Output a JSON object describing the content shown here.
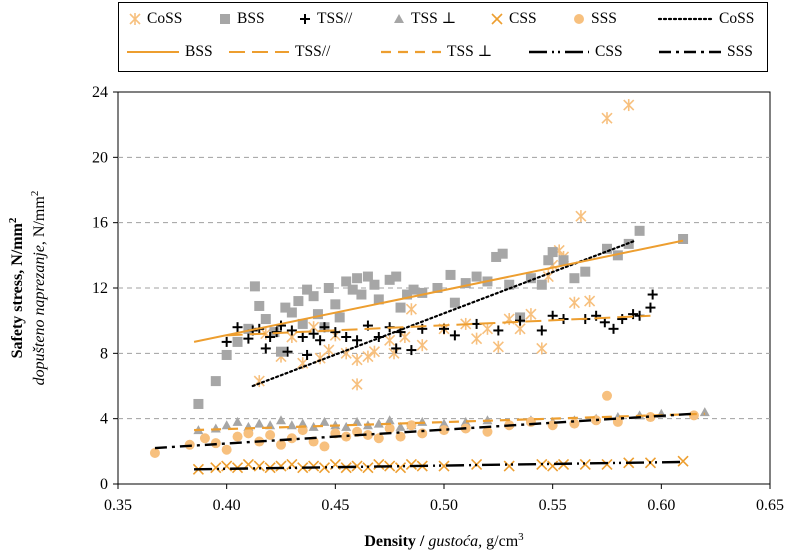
{
  "chart_data": {
    "type": "scatter",
    "xlabel": {
      "bold": "Density",
      "sep": " / ",
      "italic": "gustoća,",
      "unit": " g/cm",
      "sup": "3"
    },
    "ylabel": {
      "line1": "Safety stress, N/mm",
      "line1_sup": "2",
      "line2_italic": "dopušteno naprezanje",
      "line2_unit": ", N/mm",
      "line2_sup": "2"
    },
    "xlim": [
      0.35,
      0.65
    ],
    "ylim": [
      0,
      24
    ],
    "xticks": [
      "0.35",
      "0.40",
      "0.45",
      "0.50",
      "0.55",
      "0.60",
      "0.65"
    ],
    "yticks": [
      "0",
      "4",
      "8",
      "12",
      "16",
      "20",
      "24"
    ],
    "grid": "horizontal dashed",
    "legend_position": "top",
    "colors": {
      "orange": "#ED9E2F",
      "gray": "#A6A6A6",
      "light_orange": "#F7C07E",
      "black": "#000000"
    },
    "legend": [
      "CoSS",
      "BSS",
      "TSS//",
      "TSS ⊥",
      "CSS",
      "SSS",
      "CoSS",
      "BSS",
      "TSS//",
      "TSS ⊥",
      "CSS",
      "SSS"
    ],
    "series": [
      {
        "name": "CoSS",
        "marker": "asterisk",
        "color": "#F7C07E",
        "points": [
          [
            0.415,
            6.3
          ],
          [
            0.418,
            9.2
          ],
          [
            0.425,
            7.8
          ],
          [
            0.43,
            9.0
          ],
          [
            0.435,
            7.4
          ],
          [
            0.44,
            9.6
          ],
          [
            0.443,
            7.7
          ],
          [
            0.447,
            8.2
          ],
          [
            0.45,
            9.1
          ],
          [
            0.455,
            8.0
          ],
          [
            0.46,
            7.6
          ],
          [
            0.46,
            6.1
          ],
          [
            0.465,
            7.8
          ],
          [
            0.468,
            8.1
          ],
          [
            0.475,
            8.8
          ],
          [
            0.477,
            8.0
          ],
          [
            0.482,
            9.0
          ],
          [
            0.485,
            10.7
          ],
          [
            0.49,
            8.5
          ],
          [
            0.5,
            9.5
          ],
          [
            0.51,
            9.8
          ],
          [
            0.515,
            8.9
          ],
          [
            0.52,
            9.5
          ],
          [
            0.525,
            8.4
          ],
          [
            0.53,
            10.1
          ],
          [
            0.535,
            9.5
          ],
          [
            0.54,
            10.4
          ],
          [
            0.545,
            8.3
          ],
          [
            0.548,
            12.7
          ],
          [
            0.55,
            13.4
          ],
          [
            0.553,
            14.3
          ],
          [
            0.555,
            13.9
          ],
          [
            0.56,
            11.1
          ],
          [
            0.563,
            16.4
          ],
          [
            0.567,
            11.2
          ],
          [
            0.575,
            22.4
          ],
          [
            0.585,
            23.2
          ]
        ]
      },
      {
        "name": "BSS",
        "marker": "square",
        "color": "#A6A6A6",
        "points": [
          [
            0.387,
            4.9
          ],
          [
            0.395,
            6.3
          ],
          [
            0.4,
            7.9
          ],
          [
            0.405,
            8.7
          ],
          [
            0.41,
            9.5
          ],
          [
            0.413,
            12.1
          ],
          [
            0.415,
            10.9
          ],
          [
            0.418,
            10.1
          ],
          [
            0.422,
            9.3
          ],
          [
            0.425,
            8.1
          ],
          [
            0.427,
            10.8
          ],
          [
            0.43,
            10.5
          ],
          [
            0.433,
            11.2
          ],
          [
            0.435,
            9.8
          ],
          [
            0.437,
            11.9
          ],
          [
            0.44,
            11.5
          ],
          [
            0.442,
            10.4
          ],
          [
            0.445,
            9.6
          ],
          [
            0.447,
            12.0
          ],
          [
            0.45,
            11.0
          ],
          [
            0.452,
            10.2
          ],
          [
            0.455,
            12.4
          ],
          [
            0.458,
            11.9
          ],
          [
            0.46,
            12.6
          ],
          [
            0.462,
            11.6
          ],
          [
            0.465,
            12.7
          ],
          [
            0.468,
            12.2
          ],
          [
            0.47,
            11.3
          ],
          [
            0.475,
            12.5
          ],
          [
            0.478,
            12.7
          ],
          [
            0.48,
            10.8
          ],
          [
            0.483,
            11.6
          ],
          [
            0.486,
            11.9
          ],
          [
            0.49,
            11.7
          ],
          [
            0.497,
            12.0
          ],
          [
            0.503,
            12.8
          ],
          [
            0.505,
            11.1
          ],
          [
            0.51,
            12.3
          ],
          [
            0.515,
            12.7
          ],
          [
            0.52,
            12.4
          ],
          [
            0.524,
            13.9
          ],
          [
            0.527,
            14.1
          ],
          [
            0.53,
            12.2
          ],
          [
            0.535,
            10.2
          ],
          [
            0.54,
            12.6
          ],
          [
            0.545,
            12.2
          ],
          [
            0.548,
            13.7
          ],
          [
            0.55,
            14.2
          ],
          [
            0.555,
            13.7
          ],
          [
            0.56,
            12.6
          ],
          [
            0.565,
            13.0
          ],
          [
            0.575,
            14.4
          ],
          [
            0.58,
            14.0
          ],
          [
            0.585,
            14.7
          ],
          [
            0.59,
            15.5
          ],
          [
            0.61,
            15.0
          ]
        ]
      },
      {
        "name": "TSS//",
        "marker": "plus",
        "color": "#000000",
        "points": [
          [
            0.4,
            8.7
          ],
          [
            0.405,
            9.6
          ],
          [
            0.41,
            8.9
          ],
          [
            0.412,
            9.4
          ],
          [
            0.415,
            9.5
          ],
          [
            0.418,
            8.3
          ],
          [
            0.42,
            9.0
          ],
          [
            0.423,
            9.3
          ],
          [
            0.425,
            9.7
          ],
          [
            0.428,
            8.1
          ],
          [
            0.43,
            9.4
          ],
          [
            0.435,
            9.0
          ],
          [
            0.437,
            7.9
          ],
          [
            0.44,
            9.2
          ],
          [
            0.443,
            8.8
          ],
          [
            0.445,
            9.6
          ],
          [
            0.45,
            9.3
          ],
          [
            0.455,
            9.0
          ],
          [
            0.46,
            8.8
          ],
          [
            0.465,
            9.7
          ],
          [
            0.47,
            9.0
          ],
          [
            0.475,
            9.6
          ],
          [
            0.478,
            8.3
          ],
          [
            0.48,
            9.3
          ],
          [
            0.485,
            8.2
          ],
          [
            0.49,
            9.5
          ],
          [
            0.5,
            9.5
          ],
          [
            0.505,
            9.1
          ],
          [
            0.515,
            9.8
          ],
          [
            0.525,
            9.4
          ],
          [
            0.535,
            10.0
          ],
          [
            0.545,
            9.4
          ],
          [
            0.55,
            10.3
          ],
          [
            0.555,
            10.1
          ],
          [
            0.565,
            10.1
          ],
          [
            0.57,
            10.3
          ],
          [
            0.574,
            9.9
          ],
          [
            0.578,
            9.5
          ],
          [
            0.582,
            10.1
          ],
          [
            0.587,
            10.4
          ],
          [
            0.59,
            10.3
          ],
          [
            0.595,
            10.8
          ],
          [
            0.596,
            11.6
          ]
        ]
      },
      {
        "name": "TSS ⊥",
        "marker": "triangle",
        "color": "#A6A6A6",
        "points": [
          [
            0.387,
            3.3
          ],
          [
            0.395,
            3.4
          ],
          [
            0.4,
            3.6
          ],
          [
            0.405,
            3.8
          ],
          [
            0.41,
            3.5
          ],
          [
            0.415,
            3.7
          ],
          [
            0.42,
            3.6
          ],
          [
            0.425,
            3.9
          ],
          [
            0.43,
            3.6
          ],
          [
            0.435,
            3.7
          ],
          [
            0.44,
            3.5
          ],
          [
            0.445,
            3.8
          ],
          [
            0.45,
            3.6
          ],
          [
            0.455,
            3.5
          ],
          [
            0.46,
            3.8
          ],
          [
            0.465,
            3.6
          ],
          [
            0.47,
            3.7
          ],
          [
            0.475,
            3.9
          ],
          [
            0.48,
            3.5
          ],
          [
            0.485,
            3.6
          ],
          [
            0.49,
            3.8
          ],
          [
            0.5,
            3.7
          ],
          [
            0.51,
            3.8
          ],
          [
            0.52,
            3.9
          ],
          [
            0.53,
            3.7
          ],
          [
            0.54,
            3.9
          ],
          [
            0.55,
            3.8
          ],
          [
            0.56,
            3.9
          ],
          [
            0.57,
            4.0
          ],
          [
            0.58,
            4.1
          ],
          [
            0.59,
            4.2
          ],
          [
            0.6,
            4.3
          ],
          [
            0.62,
            4.4
          ]
        ]
      },
      {
        "name": "CSS",
        "marker": "x",
        "color": "#ED9E2F",
        "points": [
          [
            0.387,
            0.9
          ],
          [
            0.395,
            1.0
          ],
          [
            0.4,
            1.1
          ],
          [
            0.405,
            1.0
          ],
          [
            0.41,
            1.2
          ],
          [
            0.415,
            1.1
          ],
          [
            0.42,
            1.0
          ],
          [
            0.425,
            1.1
          ],
          [
            0.43,
            1.2
          ],
          [
            0.435,
            1.0
          ],
          [
            0.44,
            1.1
          ],
          [
            0.445,
            1.0
          ],
          [
            0.45,
            1.2
          ],
          [
            0.455,
            1.0
          ],
          [
            0.46,
            1.1
          ],
          [
            0.465,
            1.0
          ],
          [
            0.47,
            1.2
          ],
          [
            0.475,
            1.1
          ],
          [
            0.48,
            1.0
          ],
          [
            0.485,
            1.2
          ],
          [
            0.49,
            1.1
          ],
          [
            0.5,
            1.1
          ],
          [
            0.515,
            1.2
          ],
          [
            0.53,
            1.1
          ],
          [
            0.545,
            1.2
          ],
          [
            0.55,
            1.1
          ],
          [
            0.555,
            1.2
          ],
          [
            0.565,
            1.2
          ],
          [
            0.575,
            1.2
          ],
          [
            0.585,
            1.3
          ],
          [
            0.595,
            1.3
          ],
          [
            0.61,
            1.4
          ]
        ]
      },
      {
        "name": "SSS",
        "marker": "circle",
        "color": "#F7C07E",
        "points": [
          [
            0.367,
            1.9
          ],
          [
            0.383,
            2.4
          ],
          [
            0.39,
            2.8
          ],
          [
            0.395,
            2.5
          ],
          [
            0.4,
            2.1
          ],
          [
            0.405,
            2.9
          ],
          [
            0.41,
            3.1
          ],
          [
            0.415,
            2.6
          ],
          [
            0.42,
            3.0
          ],
          [
            0.425,
            2.4
          ],
          [
            0.43,
            2.8
          ],
          [
            0.435,
            3.3
          ],
          [
            0.44,
            2.6
          ],
          [
            0.445,
            2.3
          ],
          [
            0.45,
            3.1
          ],
          [
            0.455,
            2.9
          ],
          [
            0.46,
            3.2
          ],
          [
            0.465,
            3.0
          ],
          [
            0.47,
            2.8
          ],
          [
            0.475,
            3.4
          ],
          [
            0.48,
            2.9
          ],
          [
            0.485,
            3.6
          ],
          [
            0.49,
            3.1
          ],
          [
            0.5,
            3.3
          ],
          [
            0.51,
            3.4
          ],
          [
            0.52,
            3.2
          ],
          [
            0.53,
            3.6
          ],
          [
            0.54,
            3.8
          ],
          [
            0.55,
            3.6
          ],
          [
            0.56,
            3.7
          ],
          [
            0.57,
            3.9
          ],
          [
            0.575,
            5.4
          ],
          [
            0.58,
            3.8
          ],
          [
            0.595,
            4.1
          ],
          [
            0.615,
            4.2
          ]
        ]
      }
    ],
    "trendlines": [
      {
        "name": "CoSS",
        "style": "dotted",
        "color": "#000000",
        "from": [
          0.412,
          6.0
        ],
        "to": [
          0.588,
          14.9
        ]
      },
      {
        "name": "BSS",
        "style": "solid",
        "color": "#ED9E2F",
        "from": [
          0.385,
          8.7
        ],
        "to": [
          0.61,
          14.9
        ]
      },
      {
        "name": "TSS//",
        "style": "long-dash",
        "color": "#ED9E2F",
        "from": [
          0.4,
          9.1
        ],
        "to": [
          0.595,
          10.3
        ]
      },
      {
        "name": "TSS ⊥",
        "style": "dashed",
        "color": "#ED9E2F",
        "from": [
          0.385,
          3.3
        ],
        "to": [
          0.62,
          4.3
        ]
      },
      {
        "name": "CSS",
        "style": "long-dash-dot-dot",
        "color": "#000000",
        "from": [
          0.385,
          0.9
        ],
        "to": [
          0.61,
          1.35
        ]
      },
      {
        "name": "SSS",
        "style": "dash-dot",
        "color": "#000000",
        "from": [
          0.367,
          2.2
        ],
        "to": [
          0.615,
          4.3
        ]
      }
    ]
  }
}
